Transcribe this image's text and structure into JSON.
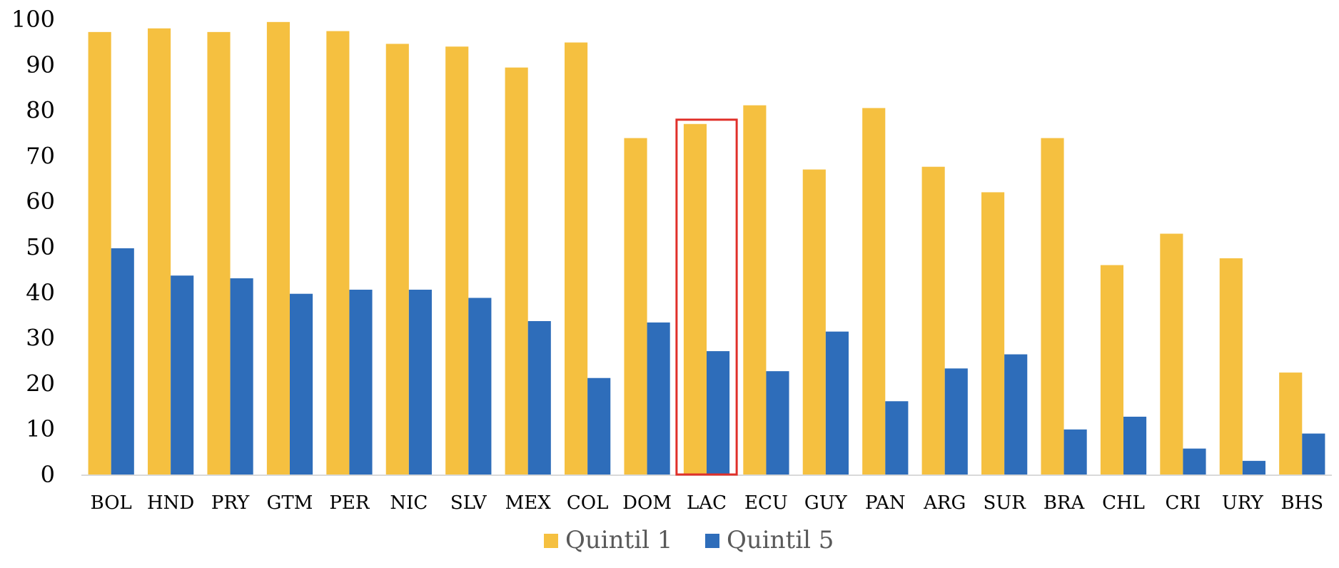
{
  "chart_data": {
    "type": "bar",
    "categories": [
      "BOL",
      "HND",
      "PRY",
      "GTM",
      "PER",
      "NIC",
      "SLV",
      "MEX",
      "COL",
      "DOM",
      "LAC",
      "ECU",
      "GUY",
      "PAN",
      "ARG",
      "SUR",
      "BRA",
      "CHL",
      "CRI",
      "URY",
      "BHS"
    ],
    "series": [
      {
        "name": "Quintil 1",
        "color": "#F5C040",
        "values": [
          97.2,
          98.0,
          97.2,
          99.4,
          97.4,
          94.6,
          94.0,
          89.4,
          94.9,
          73.9,
          77.0,
          81.1,
          67.0,
          80.5,
          67.6,
          62.0,
          73.9,
          46.0,
          52.9,
          47.5,
          22.4
        ]
      },
      {
        "name": "Quintil 5",
        "color": "#2E6DBA",
        "values": [
          49.7,
          43.7,
          43.1,
          39.7,
          40.6,
          40.6,
          38.8,
          33.7,
          21.2,
          33.4,
          27.1,
          22.7,
          31.4,
          16.1,
          23.3,
          26.4,
          9.9,
          12.7,
          5.7,
          3.0,
          9.0
        ]
      }
    ],
    "ylim": [
      0,
      100
    ],
    "yticks": [
      0,
      10,
      20,
      30,
      40,
      50,
      60,
      70,
      80,
      90,
      100
    ],
    "highlight": {
      "category": "LAC",
      "color": "#E0302A"
    },
    "grid": false,
    "legend": "bottom-center"
  }
}
